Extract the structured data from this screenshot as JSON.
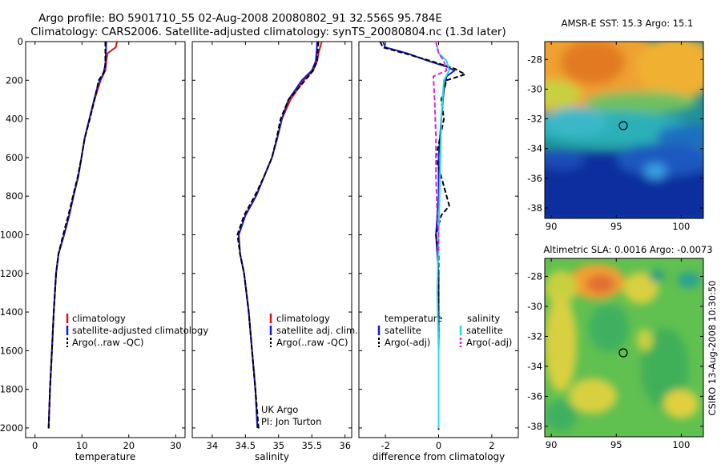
{
  "figure": {
    "title_line1": "Argo profile: BO 5901710_55 02-Aug-2008 20080802_91 32.556S 95.784E",
    "title_line2": "Climatology: CARS2006. Satellite-adjusted climatology: synTS_20080804.nc (1.3d later)",
    "side_text": "CSIRO 13-Aug-2008 10:30:50",
    "info_line1": "UK Argo",
    "info_line2": "PI: Jon Turton"
  },
  "colors": {
    "climatology": "#dd1111",
    "satellite": "#1a1acc",
    "argo": "#000000",
    "sal_satellite": "#22dddd",
    "sal_argo": "#dd22dd"
  },
  "chart_data": [
    {
      "type": "line",
      "id": "temperature",
      "title": "",
      "xlabel": "temperature",
      "ylabel": "",
      "xlim": [
        -2,
        32
      ],
      "ylim": [
        2050,
        0
      ],
      "xticks": [
        0,
        10,
        20,
        30
      ],
      "yticks": [
        0,
        200,
        400,
        600,
        800,
        1000,
        1200,
        1400,
        1600,
        1800,
        2000
      ],
      "y_reversed": true,
      "grid": false,
      "legend": {
        "position": "lower-right",
        "entries": [
          "climatology",
          "satellite-adjusted climatology",
          "Argo(..raw -QC)"
        ]
      },
      "series": [
        {
          "name": "climatology",
          "color_key": "climatology",
          "dash": "solid",
          "points": [
            [
              17.5,
              0
            ],
            [
              17.2,
              30
            ],
            [
              15.5,
              60
            ],
            [
              15.2,
              100
            ],
            [
              15.0,
              150
            ],
            [
              14.0,
              200
            ],
            [
              12.7,
              300
            ],
            [
              11.6,
              400
            ],
            [
              10.6,
              500
            ],
            [
              9.9,
              600
            ],
            [
              9.2,
              700
            ],
            [
              8.2,
              800
            ],
            [
              7.3,
              900
            ],
            [
              6.2,
              1000
            ],
            [
              5.0,
              1100
            ],
            [
              4.5,
              1200
            ],
            [
              4.0,
              1400
            ],
            [
              3.6,
              1600
            ],
            [
              3.2,
              1800
            ],
            [
              2.9,
              2000
            ]
          ]
        },
        {
          "name": "satellite-adjusted climatology",
          "color_key": "satellite",
          "dash": "solid",
          "points": [
            [
              15.2,
              0
            ],
            [
              15.1,
              60
            ],
            [
              15.0,
              120
            ],
            [
              14.5,
              170
            ],
            [
              13.5,
              220
            ],
            [
              12.6,
              300
            ],
            [
              11.6,
              400
            ],
            [
              10.6,
              500
            ],
            [
              9.9,
              600
            ],
            [
              9.2,
              700
            ],
            [
              8.2,
              800
            ],
            [
              7.3,
              900
            ],
            [
              6.2,
              1000
            ],
            [
              5.0,
              1100
            ],
            [
              4.5,
              1200
            ],
            [
              4.0,
              1400
            ],
            [
              3.6,
              1600
            ],
            [
              3.2,
              1800
            ],
            [
              2.9,
              2000
            ]
          ]
        },
        {
          "name": "Argo(..raw -QC)",
          "color_key": "argo",
          "dash": "dashed",
          "points": [
            [
              15.0,
              0
            ],
            [
              15.0,
              100
            ],
            [
              14.9,
              150
            ],
            [
              13.6,
              200
            ],
            [
              12.7,
              300
            ],
            [
              11.7,
              400
            ],
            [
              10.6,
              500
            ],
            [
              9.9,
              600
            ],
            [
              9.1,
              700
            ],
            [
              8.1,
              800
            ],
            [
              7.1,
              900
            ],
            [
              6.0,
              1000
            ],
            [
              5.0,
              1100
            ],
            [
              4.5,
              1200
            ],
            [
              4.0,
              1400
            ],
            [
              3.6,
              1600
            ],
            [
              3.2,
              1800
            ],
            [
              2.9,
              2010
            ]
          ]
        }
      ]
    },
    {
      "type": "line",
      "id": "salinity",
      "title": "",
      "xlabel": "salinity",
      "ylabel": "",
      "xlim": [
        33.7,
        36.1
      ],
      "ylim": [
        2050,
        0
      ],
      "xticks": [
        34,
        34.5,
        35,
        35.5,
        36
      ],
      "y_reversed": true,
      "grid": false,
      "legend": {
        "position": "lower-right",
        "entries": [
          "climatology",
          "satellite adj. clim.",
          "Argo(..raw -QC)"
        ]
      },
      "series": [
        {
          "name": "climatology",
          "color_key": "climatology",
          "dash": "solid",
          "points": [
            [
              35.65,
              0
            ],
            [
              35.6,
              60
            ],
            [
              35.58,
              100
            ],
            [
              35.52,
              150
            ],
            [
              35.38,
              200
            ],
            [
              35.18,
              300
            ],
            [
              35.05,
              400
            ],
            [
              34.98,
              500
            ],
            [
              34.9,
              600
            ],
            [
              34.78,
              700
            ],
            [
              34.66,
              800
            ],
            [
              34.5,
              900
            ],
            [
              34.4,
              1000
            ],
            [
              34.42,
              1100
            ],
            [
              34.48,
              1200
            ],
            [
              34.55,
              1400
            ],
            [
              34.6,
              1600
            ],
            [
              34.65,
              1800
            ],
            [
              34.68,
              2000
            ]
          ]
        },
        {
          "name": "satellite adj. clim.",
          "color_key": "satellite",
          "dash": "solid",
          "points": [
            [
              35.58,
              0
            ],
            [
              35.57,
              60
            ],
            [
              35.56,
              100
            ],
            [
              35.5,
              150
            ],
            [
              35.35,
              200
            ],
            [
              35.15,
              300
            ],
            [
              35.05,
              400
            ],
            [
              34.98,
              500
            ],
            [
              34.9,
              600
            ],
            [
              34.78,
              700
            ],
            [
              34.66,
              800
            ],
            [
              34.5,
              900
            ],
            [
              34.4,
              1000
            ],
            [
              34.42,
              1100
            ],
            [
              34.48,
              1200
            ],
            [
              34.55,
              1400
            ],
            [
              34.6,
              1600
            ],
            [
              34.65,
              1800
            ],
            [
              34.68,
              2000
            ]
          ]
        },
        {
          "name": "Argo(..raw -QC)",
          "color_key": "argo",
          "dash": "dashed",
          "points": [
            [
              35.6,
              0
            ],
            [
              35.58,
              100
            ],
            [
              35.52,
              150
            ],
            [
              35.4,
              200
            ],
            [
              35.15,
              300
            ],
            [
              35.03,
              400
            ],
            [
              34.97,
              500
            ],
            [
              34.9,
              600
            ],
            [
              34.78,
              700
            ],
            [
              34.64,
              800
            ],
            [
              34.48,
              900
            ],
            [
              34.38,
              1000
            ],
            [
              34.42,
              1100
            ],
            [
              34.48,
              1200
            ],
            [
              34.55,
              1400
            ],
            [
              34.6,
              1600
            ],
            [
              34.65,
              1800
            ],
            [
              34.7,
              2010
            ]
          ]
        }
      ]
    },
    {
      "type": "line",
      "id": "difference",
      "title": "",
      "xlabel": "difference from climatology",
      "ylabel": "",
      "xlim": [
        -3,
        3
      ],
      "ylim": [
        2050,
        0
      ],
      "xticks": [
        -2,
        0,
        2
      ],
      "y_reversed": true,
      "grid": false,
      "legend": {
        "position": "lower-right",
        "temperature_heading": "temperature",
        "salinity_heading": "salinity",
        "entries": [
          "satellite",
          "Argo(-adj)",
          "satellite",
          "Argo(-adj)"
        ]
      },
      "series": [
        {
          "name": "satellite",
          "group": "temperature",
          "color_key": "satellite",
          "dash": "solid",
          "points": [
            [
              -2.1,
              0
            ],
            [
              -2.0,
              30
            ],
            [
              -1.2,
              60
            ],
            [
              -0.4,
              100
            ],
            [
              0.3,
              130
            ],
            [
              0.6,
              150
            ],
            [
              0.3,
              180
            ],
            [
              0.2,
              250
            ],
            [
              0.1,
              400
            ],
            [
              0.0,
              600
            ],
            [
              0.0,
              800
            ],
            [
              -0.1,
              1000
            ],
            [
              0.0,
              1200
            ],
            [
              0.0,
              2000
            ]
          ]
        },
        {
          "name": "Argo(-adj)",
          "group": "temperature",
          "color_key": "argo",
          "dash": "dashed",
          "points": [
            [
              -2.2,
              0
            ],
            [
              -2.1,
              30
            ],
            [
              -1.3,
              60
            ],
            [
              -0.3,
              100
            ],
            [
              0.6,
              140
            ],
            [
              1.0,
              170
            ],
            [
              0.3,
              200
            ],
            [
              0.1,
              300
            ],
            [
              0.2,
              400
            ],
            [
              -0.1,
              600
            ],
            [
              0.3,
              800
            ],
            [
              0.4,
              850
            ],
            [
              0.1,
              900
            ],
            [
              -0.1,
              1000
            ],
            [
              0.0,
              1100
            ],
            [
              0.0,
              2010
            ]
          ]
        },
        {
          "name": "satellite",
          "group": "salinity",
          "color_key": "sal_satellite",
          "dash": "solid",
          "points": [
            [
              -0.1,
              0
            ],
            [
              0.0,
              60
            ],
            [
              0.3,
              100
            ],
            [
              0.4,
              150
            ],
            [
              0.2,
              200
            ],
            [
              0.1,
              400
            ],
            [
              0.05,
              700
            ],
            [
              0.0,
              1000
            ],
            [
              -0.05,
              1300
            ],
            [
              0.0,
              1600
            ],
            [
              0.0,
              2000
            ]
          ]
        },
        {
          "name": "Argo(-adj)",
          "group": "salinity",
          "color_key": "sal_argo",
          "dash": "dashed",
          "points": [
            [
              -0.1,
              0
            ],
            [
              0.0,
              60
            ],
            [
              0.2,
              100
            ],
            [
              0.3,
              150
            ],
            [
              -0.2,
              180
            ],
            [
              -0.15,
              300
            ],
            [
              -0.1,
              500
            ],
            [
              -0.1,
              700
            ],
            [
              -0.05,
              900
            ],
            [
              0.0,
              1000
            ],
            [
              0.0,
              1100
            ]
          ]
        }
      ]
    },
    {
      "type": "heatmap",
      "id": "sst-map",
      "title": "AMSR-E SST: 15.3  Argo: 15.1",
      "xlim": [
        89.5,
        101.7
      ],
      "ylim": [
        -38.7,
        -26.8
      ],
      "xticks": [
        90,
        95,
        100
      ],
      "yticks": [
        -28,
        -30,
        -32,
        -34,
        -36,
        -38
      ],
      "marker": {
        "lon": 95.784,
        "lat": -32.556
      }
    },
    {
      "type": "heatmap",
      "id": "sla-map",
      "title": "Altimetric SLA: 0.0016  Argo: -0.0073",
      "xlim": [
        89.5,
        101.7
      ],
      "ylim": [
        -38.7,
        -26.8
      ],
      "xticks": [
        90,
        95,
        100
      ],
      "yticks": [
        -28,
        -30,
        -32,
        -34,
        -36,
        -38
      ],
      "marker": {
        "lon": 95.784,
        "lat": -32.556
      }
    }
  ]
}
